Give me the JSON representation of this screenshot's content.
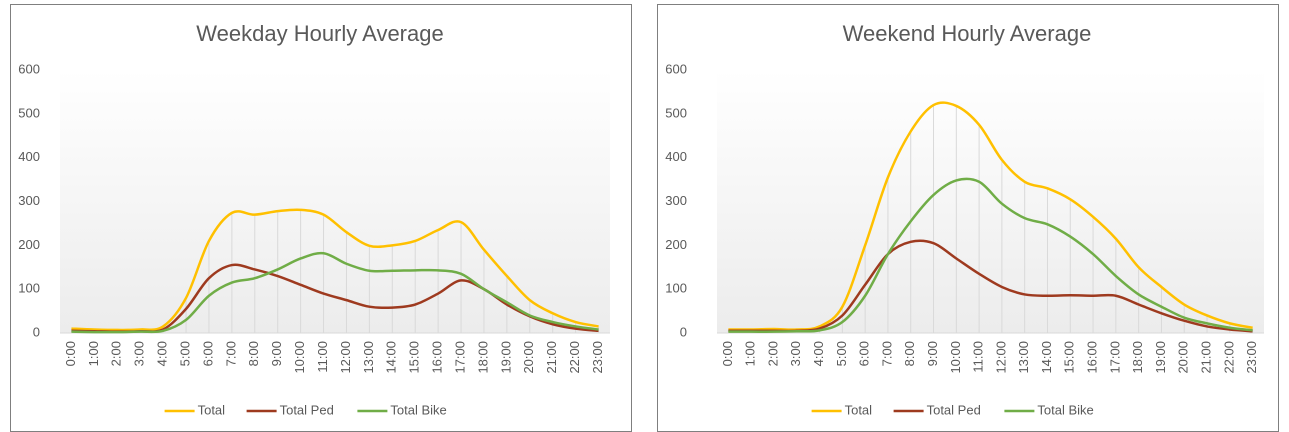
{
  "chart_data": [
    {
      "type": "line",
      "title": "Weekday Hourly Average",
      "categories": [
        "0:00",
        "1:00",
        "2:00",
        "3:00",
        "4:00",
        "5:00",
        "6:00",
        "7:00",
        "8:00",
        "9:00",
        "10:00",
        "11:00",
        "12:00",
        "13:00",
        "14:00",
        "15:00",
        "16:00",
        "17:00",
        "18:00",
        "19:00",
        "20:00",
        "21:00",
        "22:00",
        "23:00"
      ],
      "series": [
        {
          "name": "Total",
          "color": "#ffc000",
          "values": [
            10,
            8,
            7,
            8,
            15,
            80,
            210,
            274,
            270,
            278,
            281,
            270,
            230,
            199,
            200,
            210,
            235,
            253,
            190,
            130,
            75,
            45,
            25,
            15
          ]
        },
        {
          "name": "Total Ped",
          "color": "#9e3a1f",
          "values": [
            5,
            4,
            3,
            4,
            8,
            55,
            125,
            155,
            145,
            130,
            110,
            90,
            75,
            60,
            58,
            65,
            90,
            120,
            100,
            65,
            38,
            20,
            10,
            5
          ]
        },
        {
          "name": "Total Bike",
          "color": "#70ad47",
          "values": [
            3,
            2,
            2,
            3,
            5,
            30,
            85,
            115,
            125,
            145,
            170,
            182,
            158,
            142,
            142,
            143,
            143,
            135,
            100,
            70,
            40,
            25,
            15,
            8
          ]
        }
      ],
      "ylim": [
        0,
        600
      ],
      "yticks": [
        0,
        100,
        200,
        300,
        400,
        500,
        600
      ],
      "legend": "bottom"
    },
    {
      "type": "line",
      "title": "Weekend Hourly Average",
      "categories": [
        "0:00",
        "1:00",
        "2:00",
        "3:00",
        "4:00",
        "5:00",
        "6:00",
        "7:00",
        "8:00",
        "9:00",
        "10:00",
        "11:00",
        "12:00",
        "13:00",
        "14:00",
        "15:00",
        "16:00",
        "17:00",
        "18:00",
        "19:00",
        "20:00",
        "21:00",
        "22:00",
        "23:00"
      ],
      "series": [
        {
          "name": "Total",
          "color": "#ffc000",
          "values": [
            8,
            8,
            9,
            8,
            15,
            60,
            200,
            355,
            460,
            520,
            518,
            475,
            395,
            345,
            330,
            305,
            265,
            215,
            150,
            105,
            65,
            40,
            22,
            12
          ]
        },
        {
          "name": "Total Ped",
          "color": "#9e3a1f",
          "values": [
            5,
            5,
            5,
            5,
            10,
            40,
            110,
            180,
            208,
            205,
            170,
            135,
            105,
            88,
            85,
            86,
            85,
            85,
            65,
            45,
            28,
            15,
            8,
            4
          ]
        },
        {
          "name": "Total Bike",
          "color": "#70ad47",
          "values": [
            3,
            3,
            3,
            4,
            6,
            25,
            85,
            180,
            255,
            315,
            348,
            345,
            295,
            262,
            248,
            220,
            180,
            130,
            88,
            60,
            35,
            22,
            12,
            6
          ]
        }
      ],
      "ylim": [
        0,
        600
      ],
      "yticks": [
        0,
        100,
        200,
        300,
        400,
        500,
        600
      ],
      "legend": "bottom"
    }
  ]
}
